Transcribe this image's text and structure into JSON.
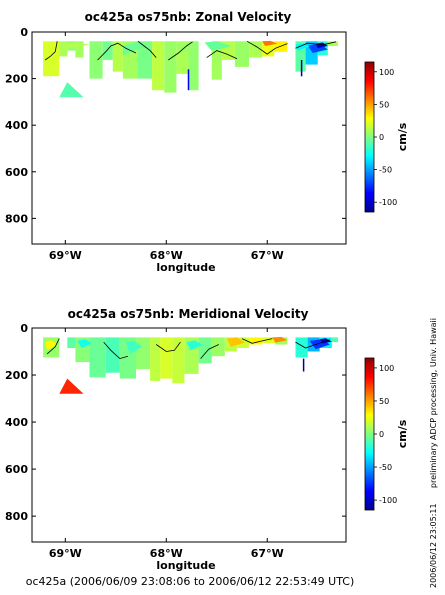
{
  "footer": "oc425a (2006/06/09 23:08:06 to 2006/06/12 22:53:49 UTC)",
  "side_note": "preliminary ADCP processing,  Univ. Hawaii",
  "timestamp": "2006/06/12 23:05:11",
  "chart_data": [
    {
      "type": "heatmap",
      "title": "oc425a os75nb: Zonal Velocity",
      "xlabel": "longitude",
      "ylabel": "",
      "xlim": [
        -69.33,
        -66.22
      ],
      "ylim": [
        910,
        0
      ],
      "x_ticks": [
        -69,
        -68,
        -67
      ],
      "x_tick_labels": [
        "69°W",
        "68°W",
        "67°W"
      ],
      "y_ticks": [
        0,
        200,
        400,
        600,
        800
      ],
      "y_tick_labels": [
        "0",
        "200",
        "400",
        "600",
        "800"
      ],
      "colorbar": {
        "label": "cm/s",
        "range": [
          -115,
          115
        ],
        "ticks": [
          100,
          50,
          0,
          -50,
          -100
        ],
        "tick_labels": [
          "100",
          "50",
          "0",
          "-50",
          "-100"
        ]
      },
      "columns": [
        {
          "x0": -69.22,
          "x1": -69.06,
          "bottom": 190,
          "value": 20
        },
        {
          "x0": -69.06,
          "x1": -68.98,
          "bottom": 105,
          "value": 10
        },
        {
          "x0": -68.98,
          "x1": -68.9,
          "bottom": 80,
          "value": 5
        },
        {
          "x0": -68.9,
          "x1": -68.82,
          "bottom": 110,
          "value": 8
        },
        {
          "x0": -68.76,
          "x1": -68.63,
          "bottom": 200,
          "value": 3
        },
        {
          "x0": -68.63,
          "x1": -68.53,
          "bottom": 120,
          "value": -3
        },
        {
          "x0": -68.53,
          "x1": -68.43,
          "bottom": 170,
          "value": 12
        },
        {
          "x0": -68.43,
          "x1": -68.28,
          "bottom": 200,
          "value": 8
        },
        {
          "x0": -68.28,
          "x1": -68.14,
          "bottom": 200,
          "value": -2
        },
        {
          "x0": -68.14,
          "x1": -68.02,
          "bottom": 250,
          "value": 14
        },
        {
          "x0": -68.02,
          "x1": -67.9,
          "bottom": 260,
          "value": 6
        },
        {
          "x0": -67.9,
          "x1": -67.78,
          "bottom": 180,
          "value": 10
        },
        {
          "x0": -67.78,
          "x1": -67.68,
          "bottom": 250,
          "value": 4
        },
        {
          "x0": -67.55,
          "x1": -67.45,
          "bottom": 205,
          "value": 8
        },
        {
          "x0": -67.45,
          "x1": -67.32,
          "bottom": 120,
          "value": 12
        },
        {
          "x0": -67.32,
          "x1": -67.18,
          "bottom": 150,
          "value": 6
        },
        {
          "x0": -67.18,
          "x1": -67.05,
          "bottom": 110,
          "value": 10
        },
        {
          "x0": -67.05,
          "x1": -66.93,
          "bottom": 105,
          "value": 25
        },
        {
          "x0": -66.93,
          "x1": -66.8,
          "bottom": 85,
          "value": 32
        },
        {
          "x0": -66.72,
          "x1": -66.62,
          "bottom": 170,
          "value": -8
        },
        {
          "x0": -66.62,
          "x1": -66.5,
          "bottom": 140,
          "value": -40
        },
        {
          "x0": -66.5,
          "x1": -66.4,
          "bottom": 100,
          "value": -20
        },
        {
          "x0": -66.4,
          "x1": -66.3,
          "bottom": 60,
          "value": 10
        }
      ],
      "patches": [
        {
          "lon": [
            -68.98,
            -68.87,
            -68.76,
            -68.98
          ],
          "depth": [
            55,
            45,
            55,
            70
          ],
          "value": 12
        },
        {
          "lon": [
            -68.43,
            -68.28,
            -68.2,
            -68.43
          ],
          "depth": [
            60,
            40,
            58,
            100
          ],
          "value": -5
        },
        {
          "lon": [
            -67.9,
            -67.78,
            -67.7,
            -67.88
          ],
          "depth": [
            50,
            45,
            70,
            95
          ],
          "value": 6
        },
        {
          "lon": [
            -67.62,
            -67.5,
            -67.35,
            -67.55
          ],
          "depth": [
            45,
            40,
            60,
            80
          ],
          "value": -6
        },
        {
          "lon": [
            -67.05,
            -66.97,
            -66.9,
            -67.02
          ],
          "depth": [
            40,
            38,
            50,
            60
          ],
          "value": 60
        },
        {
          "lon": [
            -66.6,
            -66.48,
            -66.4,
            -66.55
          ],
          "depth": [
            58,
            50,
            75,
            90
          ],
          "value": -70
        },
        {
          "lon": [
            -66.52,
            -66.45,
            -66.4,
            -66.5
          ],
          "depth": [
            50,
            45,
            60,
            70
          ],
          "value": -95
        },
        {
          "lon": [
            -66.72,
            -66.64,
            -66.58,
            -66.7
          ],
          "depth": [
            55,
            48,
            62,
            80
          ],
          "value": -30
        }
      ],
      "blob": {
        "lon": [
          -69.06,
          -68.98,
          -68.82
        ],
        "depth": [
          280,
          215,
          280
        ],
        "value": -10
      },
      "spikes": [
        {
          "lon": -67.78,
          "depth_top": 160,
          "depth_bottom": 250,
          "value": -90
        },
        {
          "lon": -66.66,
          "depth_top": 120,
          "depth_bottom": 190,
          "value": -110
        }
      ],
      "contours": [
        {
          "lon": [
            -69.2,
            -69.15,
            -69.1,
            -69.08
          ],
          "depth": [
            120,
            105,
            85,
            40
          ]
        },
        {
          "lon": [
            -68.68,
            -68.6,
            -68.55,
            -68.48,
            -68.4,
            -68.3
          ],
          "depth": [
            120,
            85,
            60,
            48,
            70,
            90
          ]
        },
        {
          "lon": [
            -68.28,
            -68.22,
            -68.16,
            -68.1
          ],
          "depth": [
            40,
            60,
            80,
            110
          ]
        },
        {
          "lon": [
            -67.98,
            -67.88,
            -67.8,
            -67.74
          ],
          "depth": [
            120,
            90,
            60,
            42
          ]
        },
        {
          "lon": [
            -67.6,
            -67.5,
            -67.4,
            -67.3
          ],
          "depth": [
            110,
            80,
            95,
            115
          ]
        },
        {
          "lon": [
            -67.2,
            -67.1,
            -67.0,
            -66.92,
            -66.8
          ],
          "depth": [
            40,
            65,
            95,
            70,
            50
          ]
        },
        {
          "lon": [
            -66.72,
            -66.6,
            -66.45,
            -66.32
          ],
          "depth": [
            70,
            48,
            55,
            42
          ]
        }
      ]
    },
    {
      "type": "heatmap",
      "title": "oc425a os75nb: Meridional Velocity",
      "xlabel": "longitude",
      "ylabel": "",
      "xlim": [
        -69.33,
        -66.22
      ],
      "ylim": [
        910,
        0
      ],
      "x_ticks": [
        -69,
        -68,
        -67
      ],
      "x_tick_labels": [
        "69°W",
        "68°W",
        "67°W"
      ],
      "y_ticks": [
        0,
        200,
        400,
        600,
        800
      ],
      "y_tick_labels": [
        "0",
        "200",
        "400",
        "600",
        "800"
      ],
      "colorbar": {
        "label": "cm/s",
        "range": [
          -115,
          115
        ],
        "ticks": [
          100,
          50,
          0,
          -50,
          -100
        ],
        "tick_labels": [
          "100",
          "50",
          "0",
          "-50",
          "-100"
        ]
      },
      "columns": [
        {
          "x0": -69.22,
          "x1": -69.06,
          "bottom": 125,
          "value": 5
        },
        {
          "x0": -68.98,
          "x1": -68.9,
          "bottom": 85,
          "value": -8
        },
        {
          "x0": -68.9,
          "x1": -68.76,
          "bottom": 145,
          "value": 2
        },
        {
          "x0": -68.76,
          "x1": -68.6,
          "bottom": 210,
          "value": -5
        },
        {
          "x0": -68.6,
          "x1": -68.46,
          "bottom": 190,
          "value": -12
        },
        {
          "x0": -68.46,
          "x1": -68.3,
          "bottom": 215,
          "value": -2
        },
        {
          "x0": -68.3,
          "x1": -68.16,
          "bottom": 175,
          "value": 4
        },
        {
          "x0": -68.16,
          "x1": -68.06,
          "bottom": 225,
          "value": 14
        },
        {
          "x0": -68.06,
          "x1": -67.94,
          "bottom": 215,
          "value": 20
        },
        {
          "x0": -67.94,
          "x1": -67.82,
          "bottom": 235,
          "value": 16
        },
        {
          "x0": -67.82,
          "x1": -67.68,
          "bottom": 195,
          "value": 10
        },
        {
          "x0": -67.68,
          "x1": -67.55,
          "bottom": 150,
          "value": -3
        },
        {
          "x0": -67.55,
          "x1": -67.42,
          "bottom": 120,
          "value": 6
        },
        {
          "x0": -67.42,
          "x1": -67.3,
          "bottom": 100,
          "value": 14
        },
        {
          "x0": -67.3,
          "x1": -67.18,
          "bottom": 85,
          "value": 18
        },
        {
          "x0": -67.18,
          "x1": -67.05,
          "bottom": 70,
          "value": 30
        },
        {
          "x0": -67.05,
          "x1": -66.92,
          "bottom": 65,
          "value": 22
        },
        {
          "x0": -66.92,
          "x1": -66.8,
          "bottom": 70,
          "value": 8
        },
        {
          "x0": -66.72,
          "x1": -66.6,
          "bottom": 125,
          "value": -20
        },
        {
          "x0": -66.6,
          "x1": -66.48,
          "bottom": 100,
          "value": -45
        },
        {
          "x0": -66.48,
          "x1": -66.36,
          "bottom": 85,
          "value": -30
        },
        {
          "x0": -66.36,
          "x1": -66.3,
          "bottom": 60,
          "value": -10
        }
      ],
      "patches": [
        {
          "lon": [
            -69.2,
            -69.14,
            -69.08,
            -69.18
          ],
          "depth": [
            60,
            50,
            70,
            95
          ],
          "value": 30
        },
        {
          "lon": [
            -68.88,
            -68.8,
            -68.74,
            -68.84
          ],
          "depth": [
            55,
            48,
            65,
            85
          ],
          "value": -25
        },
        {
          "lon": [
            -68.4,
            -68.32,
            -68.24,
            -68.36
          ],
          "depth": [
            60,
            55,
            80,
            110
          ],
          "value": -15
        },
        {
          "lon": [
            -67.8,
            -67.72,
            -67.64,
            -67.76
          ],
          "depth": [
            60,
            52,
            72,
            95
          ],
          "value": -20
        },
        {
          "lon": [
            -67.4,
            -67.3,
            -67.22,
            -67.36
          ],
          "depth": [
            45,
            40,
            62,
            80
          ],
          "value": 42
        },
        {
          "lon": [
            -66.95,
            -66.86,
            -66.8,
            -66.92
          ],
          "depth": [
            40,
            38,
            52,
            62
          ],
          "value": 55
        },
        {
          "lon": [
            -66.58,
            -66.46,
            -66.38,
            -66.52
          ],
          "depth": [
            55,
            48,
            70,
            90
          ],
          "value": -75
        },
        {
          "lon": [
            -66.48,
            -66.42,
            -66.36,
            -66.45
          ],
          "depth": [
            48,
            44,
            58,
            66
          ],
          "value": -100
        }
      ],
      "blob": {
        "lon": [
          -69.06,
          -68.98,
          -68.82
        ],
        "depth": [
          280,
          215,
          280
        ],
        "value": 78
      },
      "spikes": [
        {
          "lon": -66.64,
          "depth_top": 130,
          "depth_bottom": 185,
          "value": -110
        }
      ],
      "contours": [
        {
          "lon": [
            -69.18,
            -69.1,
            -69.06
          ],
          "depth": [
            110,
            80,
            45
          ]
        },
        {
          "lon": [
            -68.62,
            -68.55,
            -68.46,
            -68.38
          ],
          "depth": [
            60,
            95,
            130,
            120
          ]
        },
        {
          "lon": [
            -68.1,
            -68.0,
            -67.92,
            -67.86
          ],
          "depth": [
            70,
            100,
            95,
            60
          ]
        },
        {
          "lon": [
            -67.66,
            -67.58,
            -67.48
          ],
          "depth": [
            130,
            90,
            70
          ]
        },
        {
          "lon": [
            -67.25,
            -67.15,
            -67.05,
            -66.95
          ],
          "depth": [
            45,
            65,
            55,
            45
          ]
        },
        {
          "lon": [
            -66.72,
            -66.62,
            -66.52,
            -66.38
          ],
          "depth": [
            60,
            85,
            70,
            50
          ]
        }
      ]
    }
  ]
}
